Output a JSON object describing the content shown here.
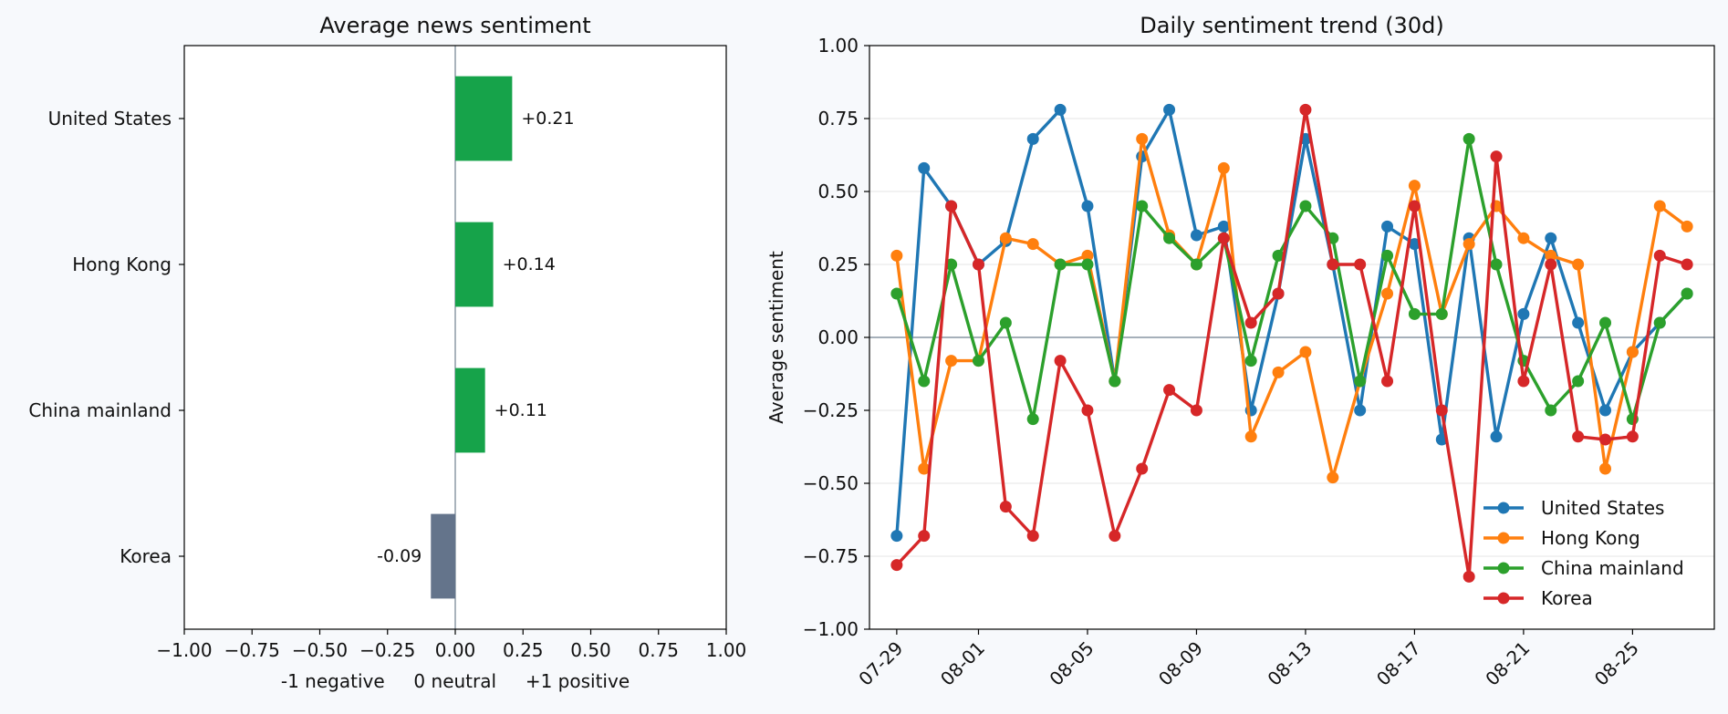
{
  "chart_data": [
    {
      "type": "bar",
      "orientation": "horizontal",
      "title": "Average news sentiment",
      "xlabel": "-1 negative     0 neutral     +1 positive",
      "ylabel": "",
      "categories": [
        "United States",
        "Hong Kong",
        "China mainland",
        "Korea"
      ],
      "values": [
        0.21,
        0.14,
        0.11,
        -0.09
      ],
      "value_labels": [
        "+0.21",
        "+0.14",
        "+0.11",
        "-0.09"
      ],
      "xlim": [
        -1.0,
        1.0
      ],
      "xticks": [
        -1.0,
        -0.75,
        -0.5,
        -0.25,
        0.0,
        0.25,
        0.5,
        0.75,
        1.0
      ],
      "xtick_labels": [
        "−1.00",
        "−0.75",
        "−0.50",
        "−0.25",
        "0.00",
        "0.25",
        "0.50",
        "0.75",
        "1.00"
      ],
      "grid": false,
      "colors": {
        "positive": "#16a34a",
        "negative": "#64748b",
        "zero_line": "#708090"
      }
    },
    {
      "type": "line",
      "title": "Daily sentiment trend (30d)",
      "xlabel": "",
      "ylabel": "Average sentiment",
      "x": [
        "07-29",
        "07-30",
        "07-31",
        "08-01",
        "08-02",
        "08-03",
        "08-04",
        "08-05",
        "08-06",
        "08-07",
        "08-08",
        "08-09",
        "08-10",
        "08-11",
        "08-12",
        "08-13",
        "08-14",
        "08-15",
        "08-16",
        "08-17",
        "08-18",
        "08-19",
        "08-20",
        "08-21",
        "08-22",
        "08-23",
        "08-24",
        "08-25",
        "08-26",
        "08-27"
      ],
      "xticks": [
        "07-29",
        "08-01",
        "08-05",
        "08-09",
        "08-13",
        "08-17",
        "08-21",
        "08-25"
      ],
      "ylim": [
        -1.0,
        1.0
      ],
      "yticks": [
        -1.0,
        -0.75,
        -0.5,
        -0.25,
        0.0,
        0.25,
        0.5,
        0.75,
        1.0
      ],
      "ytick_labels": [
        "−1.00",
        "−0.75",
        "−0.50",
        "−0.25",
        "0.00",
        "0.25",
        "0.50",
        "0.75",
        "1.00"
      ],
      "grid": "horizontal",
      "legend": "lower-right",
      "series": [
        {
          "name": "United States",
          "color": "#1f77b4",
          "values": [
            -0.68,
            0.58,
            0.45,
            0.25,
            0.33,
            0.68,
            0.78,
            0.45,
            -0.15,
            0.62,
            0.78,
            0.35,
            0.38,
            -0.25,
            0.15,
            0.68,
            0.25,
            -0.25,
            0.38,
            0.32,
            -0.35,
            0.34,
            -0.34,
            0.08,
            0.34,
            0.05,
            -0.25,
            -0.05,
            0.05,
            0.15
          ]
        },
        {
          "name": "Hong Kong",
          "color": "#ff7f0e",
          "values": [
            0.28,
            -0.45,
            -0.08,
            -0.08,
            0.34,
            0.32,
            0.25,
            0.28,
            -0.15,
            0.68,
            0.35,
            0.25,
            0.58,
            -0.34,
            -0.12,
            -0.05,
            -0.48,
            -0.15,
            0.15,
            0.52,
            0.08,
            0.32,
            0.45,
            0.34,
            0.28,
            0.25,
            -0.45,
            -0.05,
            0.45,
            0.38
          ]
        },
        {
          "name": "China mainland",
          "color": "#2ca02c",
          "values": [
            0.15,
            -0.15,
            0.25,
            -0.08,
            0.05,
            -0.28,
            0.25,
            0.25,
            -0.15,
            0.45,
            0.34,
            0.25,
            0.34,
            -0.08,
            0.28,
            0.45,
            0.34,
            -0.15,
            0.28,
            0.08,
            0.08,
            0.68,
            0.25,
            -0.08,
            -0.25,
            -0.15,
            0.05,
            -0.28,
            0.05,
            0.15
          ]
        },
        {
          "name": "Korea",
          "color": "#d62728",
          "values": [
            -0.78,
            -0.68,
            0.45,
            0.25,
            -0.58,
            -0.68,
            -0.08,
            -0.25,
            -0.68,
            -0.45,
            -0.18,
            -0.25,
            0.34,
            0.05,
            0.15,
            0.78,
            0.25,
            0.25,
            -0.15,
            0.45,
            -0.25,
            -0.82,
            0.62,
            -0.15,
            0.25,
            -0.34,
            -0.35,
            -0.34,
            0.28,
            0.25
          ]
        }
      ],
      "colors": {
        "zero_line": "#708090",
        "grid": "#e6e6e6"
      }
    }
  ]
}
